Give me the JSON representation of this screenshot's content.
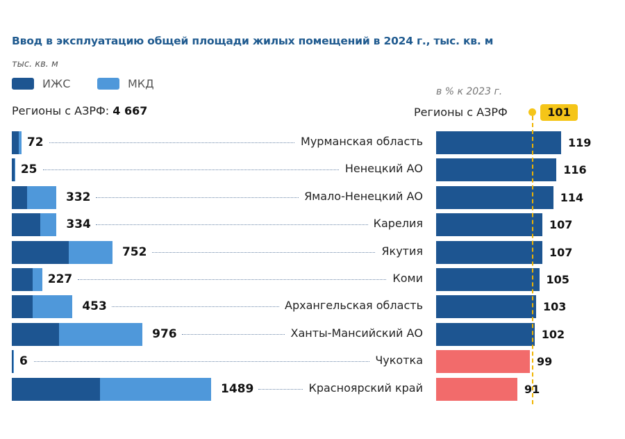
{
  "title": "Ввод в эксплуатацию общей площади жилых помещений в 2024 г., тыс. кв. м",
  "unit": "тыс. кв. м",
  "legend": [
    {
      "label": "ИЖС",
      "color": "#1d5591"
    },
    {
      "label": "МКД",
      "color": "#4f98da"
    }
  ],
  "total_label": "Регионы с АЗРФ:",
  "total_value": "4 667",
  "pct_caption": "в % к 2023 г.",
  "avg_label": "Регионы с АЗРФ",
  "avg_value": "101",
  "colors": {
    "izhs": "#1d5591",
    "mkd": "#4f98da",
    "above": "#1d5591",
    "below": "#f26b6b",
    "avg": "#f5c518"
  },
  "chart_data": {
    "type": "bar",
    "title": "Ввод в эксплуатацию общей площади жилых помещений в 2024 г., тыс. кв. м",
    "categories": [
      "Мурманская область",
      "Ненецкий АО",
      "Ямало-Ненецкий АО",
      "Карелия",
      "Якутия",
      "Коми",
      "Архангельская область",
      "Ханты-Мансийский АО",
      "Чукотка",
      "Красноярский край"
    ],
    "totals": [
      72,
      25,
      332,
      334,
      752,
      227,
      453,
      976,
      6,
      1489
    ],
    "series": [
      {
        "name": "ИЖС",
        "values": [
          52,
          20,
          114,
          212,
          425,
          155,
          155,
          352,
          3,
          658
        ]
      },
      {
        "name": "МКД",
        "values": [
          20,
          5,
          218,
          122,
          327,
          72,
          298,
          624,
          3,
          831
        ]
      }
    ],
    "percent_to_2023": [
      119,
      116,
      114,
      107,
      107,
      105,
      103,
      102,
      99,
      91
    ],
    "percent_reference": 101
  }
}
